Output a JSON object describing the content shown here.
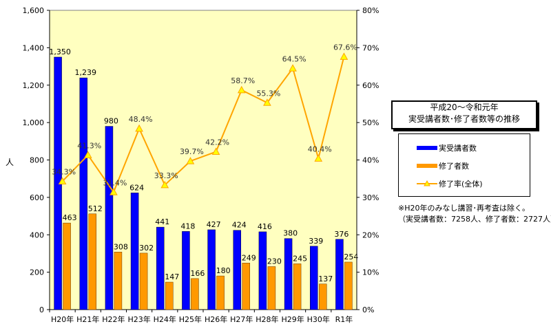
{
  "chart_data": {
    "type": "bar",
    "title": "平成20～令和元年\n実受講者数･修了者数等の推移",
    "categories": [
      "H20年",
      "H21年",
      "H22年",
      "H23年",
      "H24年",
      "H25年",
      "H26年",
      "H27年",
      "H28年",
      "H29年",
      "H30年",
      "R1年"
    ],
    "ylabel": "人",
    "ylim": [
      0,
      1600
    ],
    "y_ticks": [
      "0",
      "200",
      "400",
      "600",
      "800",
      "1,000",
      "1,200",
      "1,400",
      "1,600"
    ],
    "y2lim": [
      0,
      80
    ],
    "y2_ticks": [
      "0%",
      "10%",
      "20%",
      "30%",
      "40%",
      "50%",
      "60%",
      "70%",
      "80%"
    ],
    "grid": false,
    "series": [
      {
        "name": "実受講者数",
        "type": "bar",
        "axis": "left",
        "color": "#0000ff",
        "values": [
          1350,
          1239,
          980,
          624,
          441,
          418,
          427,
          424,
          416,
          380,
          339,
          376
        ],
        "labels": [
          "1,350",
          "1,239",
          "980",
          "624",
          "441",
          "418",
          "427",
          "424",
          "416",
          "380",
          "339",
          "376"
        ]
      },
      {
        "name": "修了者数",
        "type": "bar",
        "axis": "left",
        "color": "#ff9900",
        "values": [
          463,
          512,
          308,
          302,
          147,
          166,
          180,
          249,
          230,
          245,
          137,
          254
        ],
        "labels": [
          "463",
          "512",
          "308",
          "302",
          "147",
          "166",
          "180",
          "249",
          "230",
          "245",
          "137",
          "254"
        ]
      },
      {
        "name": "修了率(全体)",
        "type": "line",
        "axis": "right",
        "color": "#ffa500",
        "values": [
          34.3,
          41.3,
          31.4,
          48.4,
          33.3,
          39.7,
          42.2,
          58.7,
          55.3,
          64.5,
          40.4,
          67.6
        ],
        "labels": [
          "34.3%",
          "41.3%",
          "31.4%",
          "48.4%",
          "33.3%",
          "39.7%",
          "42.2%",
          "58.7%",
          "55.3%",
          "64.5%",
          "40.4%",
          "67.6%"
        ]
      }
    ],
    "colors": {
      "plot_background": "#ffffc0",
      "axis": "#000000",
      "border": "#808080"
    }
  },
  "title_lines": [
    "平成20～令和元年",
    "実受講者数･修了者数等の推移"
  ],
  "legend": [
    "実受講者数",
    "修了者数",
    "修了率(全体)"
  ],
  "note_lines": [
    "※H20年のみなし講習･再考査は除く。",
    "（実受講者数：7258人、修了者数：2727人）"
  ]
}
